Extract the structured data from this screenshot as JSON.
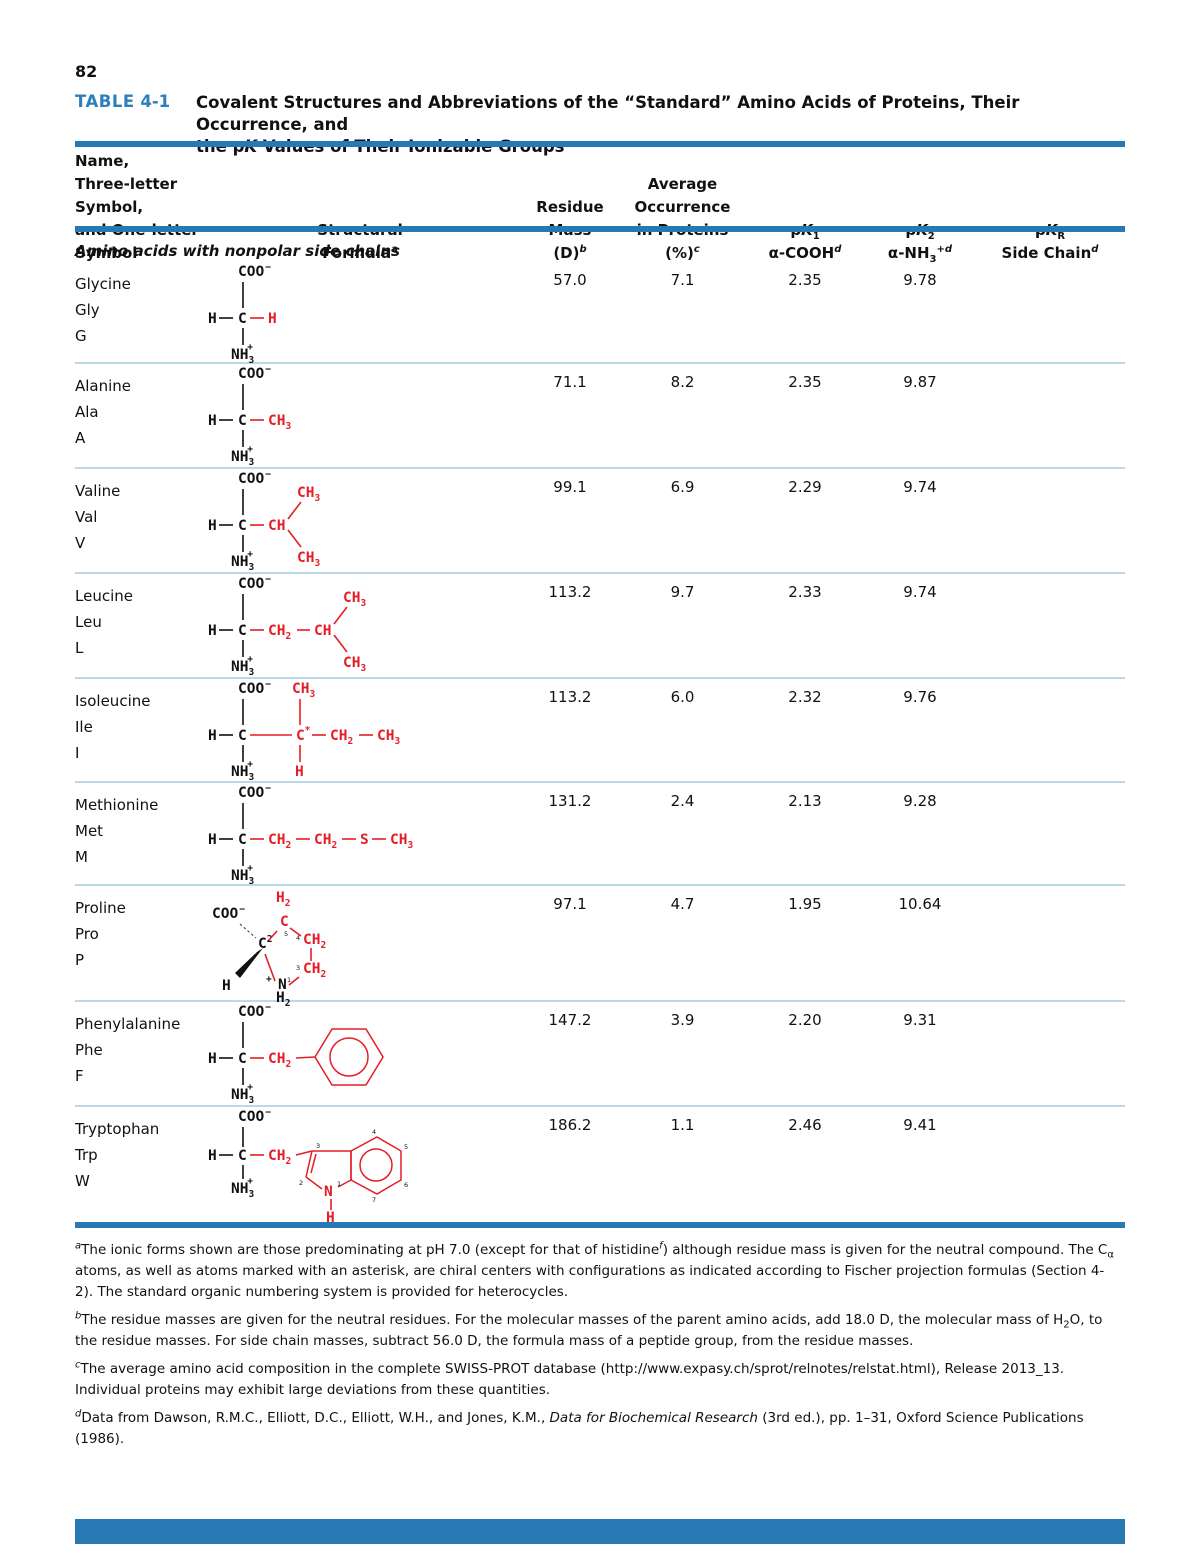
{
  "page_number": "82",
  "header": {
    "label_html": "<b>TABLE</b> 4-1",
    "title_html": "Covalent Structures and Abbreviations of the “Standard” Amino Acids of Proteins, Their Occurrence, and<br>the p<i>K</i> Values of Their Ionizable Groups"
  },
  "columns": {
    "name_html": "Name,<br>Three-letter Symbol,<br>and One-letter Symbol",
    "formula_html": "Structural<br>Formula<sup><i>a</i></sup>",
    "mass_html": "Residue<br>Mass<br>(D)<sup><i>b</i></sup>",
    "occurrence_html": "Average<br>Occurrence<br>in Proteins (%)<sup><i>c</i></sup>",
    "pk1_html": "p<i>K</i><sub>1</sub><br>α-COOH<sup><i>d</i></sup>",
    "pk2_html": "p<i>K</i><sub>2</sub><br>α-NH<sub>3</sub><sup>+<i>d</i></sup>",
    "pkr_html": "p<i>K</i><sub>R</sub><br>Side Chain<sup><i>d</i></sup>"
  },
  "section_title": "Amino acids with nonpolar side chains",
  "amino_acids": [
    {
      "name": "Glycine",
      "abbr3": "Gly",
      "abbr1": "G",
      "mass": "57.0",
      "occurrence": "7.1",
      "pk1": "2.35",
      "pk2": "9.78",
      "pkr": ""
    },
    {
      "name": "Alanine",
      "abbr3": "Ala",
      "abbr1": "A",
      "mass": "71.1",
      "occurrence": "8.2",
      "pk1": "2.35",
      "pk2": "9.87",
      "pkr": ""
    },
    {
      "name": "Valine",
      "abbr3": "Val",
      "abbr1": "V",
      "mass": "99.1",
      "occurrence": "6.9",
      "pk1": "2.29",
      "pk2": "9.74",
      "pkr": ""
    },
    {
      "name": "Leucine",
      "abbr3": "Leu",
      "abbr1": "L",
      "mass": "113.2",
      "occurrence": "9.7",
      "pk1": "2.33",
      "pk2": "9.74",
      "pkr": ""
    },
    {
      "name": "Isoleucine",
      "abbr3": "Ile",
      "abbr1": "I",
      "mass": "113.2",
      "occurrence": "6.0",
      "pk1": "2.32",
      "pk2": "9.76",
      "pkr": ""
    },
    {
      "name": "Methionine",
      "abbr3": "Met",
      "abbr1": "M",
      "mass": "131.2",
      "occurrence": "2.4",
      "pk1": "2.13",
      "pk2": "9.28",
      "pkr": ""
    },
    {
      "name": "Proline",
      "abbr3": "Pro",
      "abbr1": "P",
      "mass": "97.1",
      "occurrence": "4.7",
      "pk1": "1.95",
      "pk2": "10.64",
      "pkr": ""
    },
    {
      "name": "Phenylalanine",
      "abbr3": "Phe",
      "abbr1": "F",
      "mass": "147.2",
      "occurrence": "3.9",
      "pk1": "2.20",
      "pk2": "9.31",
      "pkr": ""
    },
    {
      "name": "Tryptophan",
      "abbr3": "Trp",
      "abbr1": "W",
      "mass": "186.2",
      "occurrence": "1.1",
      "pk1": "2.46",
      "pk2": "9.41",
      "pkr": ""
    }
  ],
  "f": {
    "COO": "COO",
    "neg": "−",
    "H": "H",
    "C": "C",
    "S": "S",
    "N": "N",
    "CH": "CH",
    "NH": "NH",
    "n2": "2",
    "n3": "3",
    "plus": "+",
    "star": "*",
    "d1": "1",
    "d2": "2",
    "d3": "3",
    "d4": "4",
    "d5": "5",
    "d6": "6",
    "d7": "7"
  },
  "footnotes": [
    "<sup><i>a</i></sup>The ionic forms shown are those predominating at pH 7.0 (except for that of histidine<sup><i>f</i></sup>) although residue mass is given for the neutral compound. The C<sub>α</sub> atoms, as well as atoms marked with an asterisk, are chiral centers with configurations as indicated according to Fischer projection formulas (Section 4-2). The standard organic numbering system is provided for heterocycles.",
    "<sup><i>b</i></sup>The residue masses are given for the neutral residues. For the molecular masses of the parent amino acids, add 18.0 D, the molecular mass of H<sub>2</sub>O, to the residue masses. For side chain masses, subtract 56.0 D, the formula mass of a peptide group, from the residue masses.",
    "<sup><i>c</i></sup>The average amino acid composition in the complete SWISS-PROT database (http://www.expasy.ch/sprot/relnotes/relstat.html), Release 2013_13. Individual proteins may exhibit large deviations from these quantities.",
    "<sup><i>d</i></sup>Data from Dawson, R.M.C., Elliott, D.C., Elliott, W.H., and Jones, K.M., <i>Data for Biochemical Research</i> (3rd ed.), pp. 1–31, Oxford Science Publications (1986)."
  ],
  "colors": {
    "rule_blue": "#2878b4",
    "label_blue": "#2b7fba",
    "separator_blue": "#bcd9ec",
    "structure_red": "#e41e26"
  }
}
